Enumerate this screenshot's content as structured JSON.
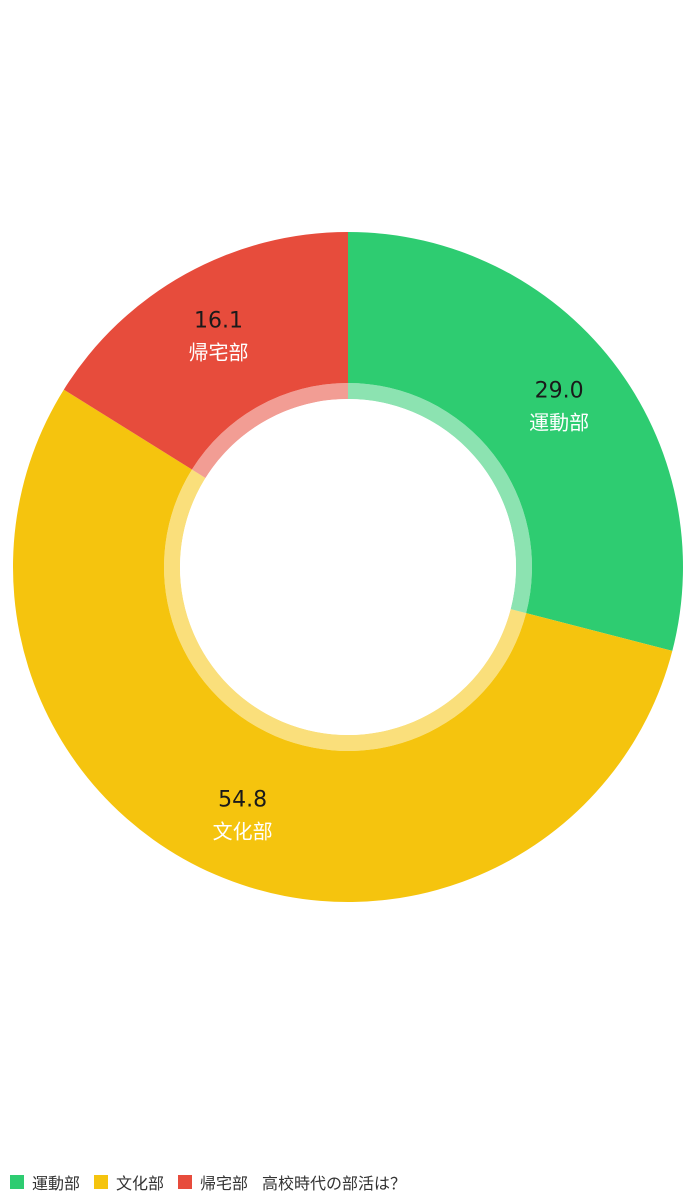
{
  "chart_data": {
    "type": "pie",
    "style": "donut",
    "title": "高校時代の部活は？",
    "slices": [
      {
        "name": "運動部",
        "value": 29.0,
        "label": "29.0",
        "color": "#2ecc71"
      },
      {
        "name": "文化部",
        "value": 54.8,
        "label": "54.8",
        "color": "#f5c40e"
      },
      {
        "name": "帰宅部",
        "value": 16.1,
        "label": "16.1",
        "color": "#e74c3c"
      }
    ],
    "legend_position": "bottom-left"
  }
}
